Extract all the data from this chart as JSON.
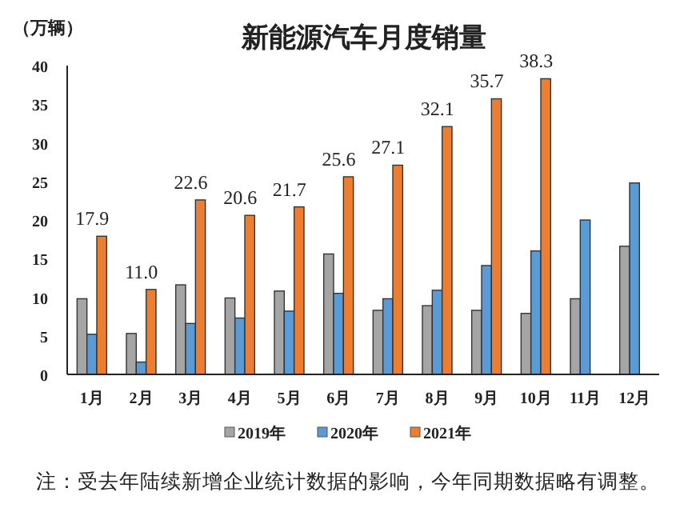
{
  "chart_data": {
    "type": "bar",
    "title": "新能源汽车月度销量",
    "ylabel": "（万辆）",
    "categories": [
      "1月",
      "2月",
      "3月",
      "4月",
      "5月",
      "6月",
      "7月",
      "8月",
      "9月",
      "10月",
      "11月",
      "12月"
    ],
    "series": [
      {
        "name": "2019年",
        "color": "#a5a5a5",
        "values": [
          9.8,
          5.3,
          11.6,
          9.9,
          10.8,
          15.6,
          8.3,
          8.9,
          8.3,
          7.9,
          9.8,
          16.6
        ]
      },
      {
        "name": "2020年",
        "color": "#5b9bd5",
        "values": [
          5.2,
          1.6,
          6.6,
          7.3,
          8.2,
          10.5,
          9.8,
          10.9,
          14.1,
          16.0,
          20.0,
          24.8
        ]
      },
      {
        "name": "2021年",
        "color": "#ed7d31",
        "values": [
          17.9,
          11.0,
          22.6,
          20.6,
          21.7,
          25.6,
          27.1,
          32.1,
          35.7,
          38.3,
          null,
          null
        ],
        "value_labels": [
          "17.9",
          "11.0",
          "22.6",
          "20.6",
          "21.7",
          "25.6",
          "27.1",
          "32.1",
          "35.7",
          "38.3",
          null,
          null
        ]
      }
    ],
    "ylim": [
      0,
      40
    ],
    "yticks": [
      0,
      5,
      10,
      15,
      20,
      25,
      30,
      35,
      40
    ],
    "grid": false,
    "legend": "bottom",
    "annotations": [
      "注：受去年陆续新增企业统计数据的影响，今年同期数据略有调整。"
    ]
  }
}
